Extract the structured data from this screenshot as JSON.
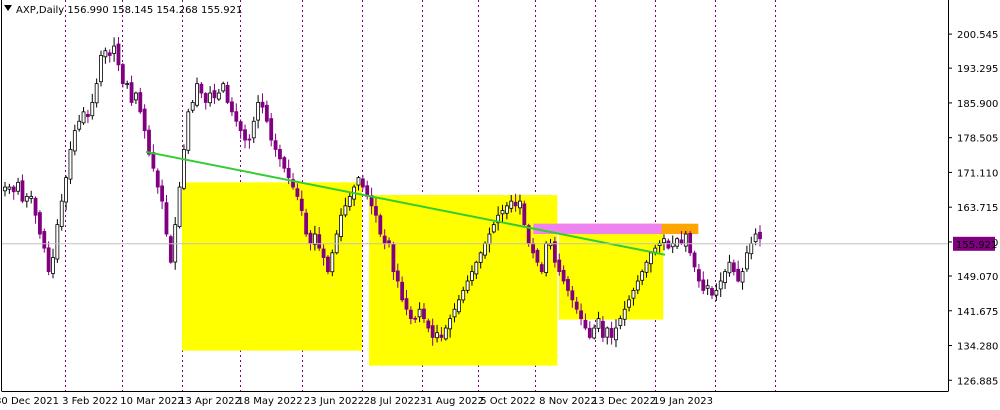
{
  "chart_data": {
    "type": "candlestick",
    "header": "AXP,Daily  156.990 158.145 154.268 155.921",
    "symbol": "AXP",
    "timeframe": "Daily",
    "ohlc_last": {
      "open": 156.99,
      "high": 158.145,
      "low": 154.268,
      "close": 155.921
    },
    "current_price_label": "155.921",
    "y_ticks": [
      "200.545",
      "193.295",
      "185.900",
      "178.505",
      "171.110",
      "163.715",
      "156.320",
      "149.070",
      "141.675",
      "134.280",
      "126.885"
    ],
    "ylim": [
      124.6,
      207.8
    ],
    "x_tick_labels": [
      "30 Dec 2021",
      "3 Feb 2022",
      "10 Mar 2022",
      "13 Apr 2022",
      "18 May 2022",
      "23 Jun 2022",
      "28 Jul 2022",
      "31 Aug 2022",
      "5 Oct 2022",
      "8 Nov 2022",
      "13 Dec 2022",
      "19 Jan 2023"
    ],
    "price_path_closes": [
      168,
      168,
      167,
      169,
      165,
      166,
      166,
      162,
      158,
      155,
      150,
      153,
      160,
      165,
      170,
      176,
      180,
      182,
      184,
      183,
      186,
      190,
      196,
      197,
      196,
      198,
      194,
      190,
      190,
      186,
      188,
      184,
      180,
      175,
      172,
      168,
      165,
      158,
      152,
      160,
      168,
      176,
      184,
      186,
      190,
      188,
      186,
      188,
      187,
      188,
      190,
      186,
      184,
      182,
      180,
      178,
      178,
      182,
      186,
      185,
      182,
      178,
      176,
      174,
      172,
      170,
      168,
      166,
      163,
      158,
      156,
      158,
      155,
      153,
      150,
      154,
      158,
      162,
      164,
      166,
      168,
      170,
      168,
      166,
      164,
      162,
      158,
      156,
      156,
      150,
      148,
      144,
      142,
      140,
      140,
      142,
      140,
      138,
      136,
      137,
      136,
      138,
      140,
      142,
      144,
      146,
      148,
      150,
      152,
      154,
      156,
      158,
      160,
      162,
      163,
      164,
      165,
      164,
      165,
      160,
      156,
      154,
      152,
      150,
      156,
      156,
      152,
      150,
      148,
      146,
      144,
      142,
      140,
      138,
      136,
      138,
      140,
      136,
      138,
      136,
      138,
      140,
      142,
      144,
      146,
      148,
      150,
      152,
      154,
      155,
      156,
      157,
      155,
      156,
      157,
      156,
      158,
      154,
      151,
      148,
      146,
      147,
      145,
      146,
      148,
      150,
      152,
      150,
      148,
      150,
      154,
      156,
      158,
      157
    ],
    "trendline": {
      "color": "#32CD32",
      "start": {
        "date": "~24 Mar 2022",
        "price": 175.5
      },
      "end": {
        "date": "~25 Jan 2023",
        "price": 153.6
      }
    },
    "zones": [
      {
        "color": "#FFFF00",
        "x_start": "~14 Apr 2022",
        "x_end": "~28 Jul 2022",
        "price_low": 133.2,
        "price_high": 169.0
      },
      {
        "color": "#FFFF00",
        "x_start": "~1 Aug 2022",
        "x_end": "~22 Nov 2022",
        "price_low": 130.0,
        "price_high": 166.3
      },
      {
        "color": "#FFFF00",
        "x_start": "~23 Nov 2022",
        "x_end": "~24 Jan 2023",
        "price_low": 139.8,
        "price_high": 158.0
      },
      {
        "color": "#FFA500",
        "x_start": "~21 Nov 2022",
        "x_end": "~14 Feb 2023",
        "price_low": 158.0,
        "price_high": 160.2
      },
      {
        "color": "#EE82EE",
        "x_start": "~8 Nov 2022",
        "x_end": "~23 Jan 2023",
        "price_low": 158.0,
        "price_high": 160.2
      }
    ],
    "colors": {
      "bull": "#000000",
      "bear": "#800080",
      "grid_v": "#800080",
      "axis": "#000000",
      "price_tag_bg": "#800080",
      "price_tag_fg": "#ffffff"
    },
    "grid": "vertical-dotted",
    "legend": "none"
  }
}
